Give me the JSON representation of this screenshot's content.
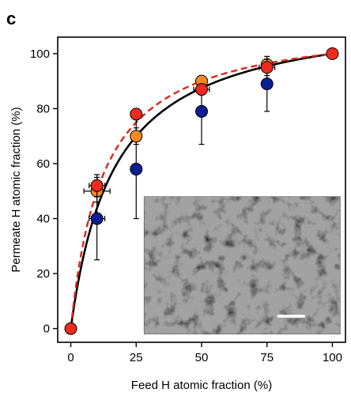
{
  "panel_label": "c",
  "chart_data": {
    "type": "scatter",
    "title": "",
    "xlabel": "Feed H atomic fraction (%)",
    "ylabel": "Permeate H atomic fraction (%)",
    "xlim": [
      -5,
      105
    ],
    "ylim": [
      -5,
      106
    ],
    "xticks": [
      "0",
      "25",
      "50",
      "75",
      "100"
    ],
    "yticks": [
      "0",
      "20",
      "40",
      "60",
      "80",
      "100"
    ],
    "grid": false,
    "legend": "none",
    "series": [
      {
        "color": "#ef2b1f",
        "marker": "circle",
        "points": [
          {
            "x": 0,
            "y": 0
          },
          {
            "x": 10,
            "y": 52,
            "xerr": 3,
            "yerr": 4
          },
          {
            "x": 25,
            "y": 78,
            "xerr": 1.5,
            "yerr": 2
          },
          {
            "x": 50,
            "y": 87,
            "xerr": 3,
            "yerr": 2
          },
          {
            "x": 75,
            "y": 95,
            "xerr": 3,
            "yerr": 3
          },
          {
            "x": 100,
            "y": 100
          }
        ]
      },
      {
        "color": "#f58a24",
        "marker": "circle",
        "points": [
          {
            "x": 10,
            "y": 50,
            "xerr": 5,
            "yerr": 4
          },
          {
            "x": 25,
            "y": 70,
            "xerr": 1.5,
            "yerr": 3
          },
          {
            "x": 50,
            "y": 90,
            "xerr": 1.5,
            "yerr": 2
          },
          {
            "x": 75,
            "y": 96,
            "xerr": 1.5,
            "yerr": 2
          }
        ]
      },
      {
        "color": "#0d1f94",
        "marker": "circle",
        "points": [
          {
            "x": 10,
            "y": 40,
            "xerr": 3,
            "yerr": 15
          },
          {
            "x": 25,
            "y": 58,
            "xerr": 1.5,
            "yerr": 18
          },
          {
            "x": 50,
            "y": 79,
            "xerr": 1.5,
            "yerr": 12
          },
          {
            "x": 75,
            "y": 89,
            "xerr": 1.5,
            "yerr": 10
          }
        ]
      }
    ],
    "curves": [
      {
        "style": "solid",
        "color": "#000000",
        "ratio_k": 7
      },
      {
        "style": "dashed",
        "color": "#e32419",
        "ratio_k": 9
      }
    ],
    "inset": {
      "type": "micrograph",
      "x_range": [
        28,
        103
      ],
      "y_range": [
        -2,
        48
      ],
      "has_scale_bar": true
    }
  }
}
